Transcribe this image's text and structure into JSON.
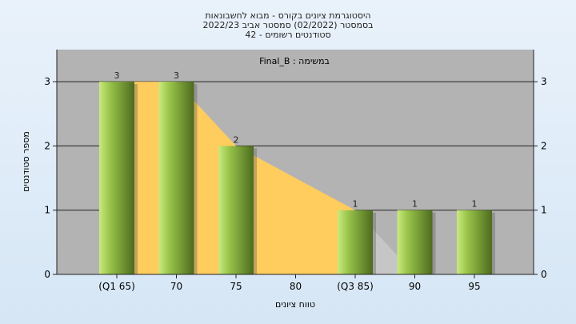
{
  "chart_data": {
    "type": "bar",
    "title_lines": [
      "היסטוגרמת ציונים בקורס - מבוא לחשבונאות",
      "בסמסטר  (02/2022)  סמסטר אביב 2022/23",
      "סטודנטים רשומים - 42"
    ],
    "annotation": "במשימה : Final_B",
    "xlabel": "טווח ציונים",
    "ylabel": "מספר סטודנטים",
    "categories": [
      "(Q1 65)",
      "70",
      "75",
      "80",
      "(Q3 85)",
      "90",
      "95"
    ],
    "x": [
      65,
      70,
      75,
      80,
      85,
      90,
      95
    ],
    "values": [
      3,
      3,
      2,
      null,
      1,
      1,
      1
    ],
    "data_labels": [
      "3",
      "3",
      "2",
      "",
      "1",
      "1",
      "1"
    ],
    "area_series": [
      3,
      3,
      2,
      1.5,
      1,
      0,
      0
    ],
    "ylim": [
      0,
      3.5
    ],
    "yticks": [
      0,
      1,
      2,
      3
    ],
    "grid": true,
    "colors": {
      "plot_bg": "#b3b3b3",
      "area": "#ffcc5e",
      "area_tail": "#c6c6c6",
      "bar_light": "#c9ea7e",
      "bar_mid": "#99c44a",
      "bar_dark": "#4d6b1e"
    }
  }
}
